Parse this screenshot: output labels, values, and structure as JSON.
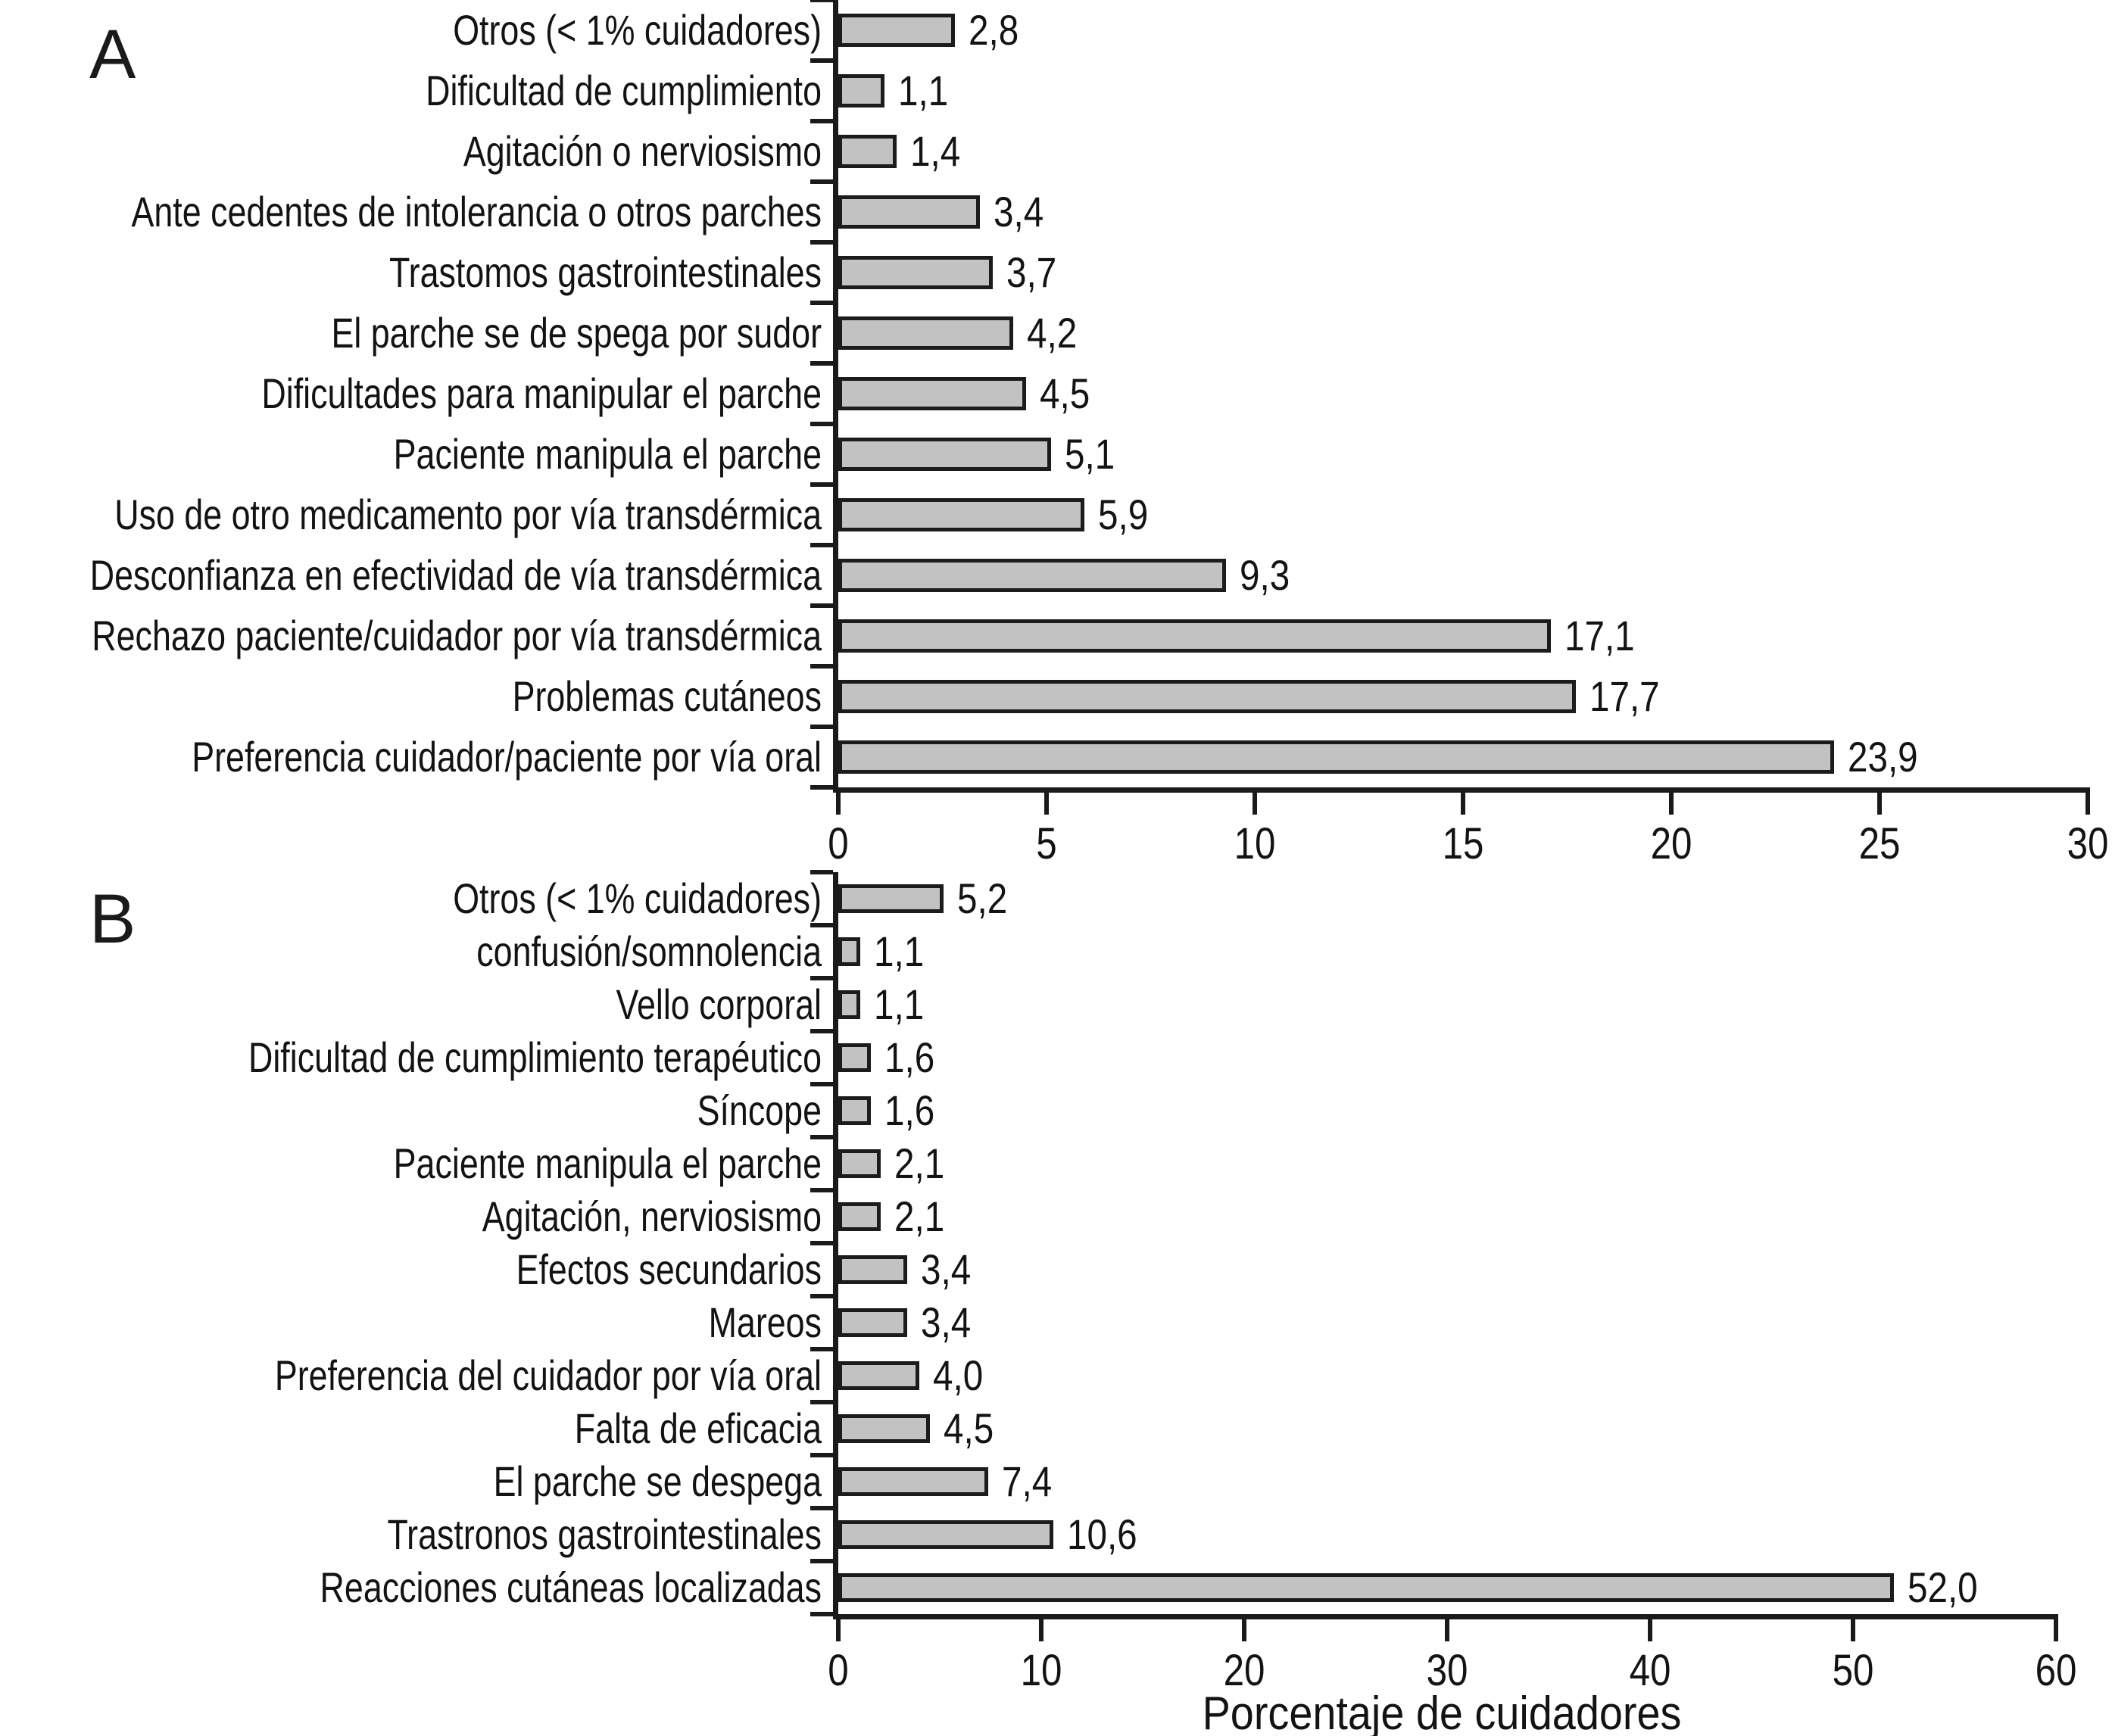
{
  "figure_colors": {
    "bar_fill": "#c2c2c2",
    "bar_border": "#1c1c1c",
    "axis_color": "#1a1a1a",
    "text_color": "#131313",
    "background": "#ffffff"
  },
  "chart_data": [
    {
      "type": "bar",
      "orientation": "horizontal",
      "panel_label": "A",
      "title": "",
      "categories": [
        "Otros (< 1% cuidadores)",
        "Dificultad de cumplimiento",
        "Agitación o nerviosismo",
        "Ante cedentes de intolerancia o otros parches",
        "Trastomos gastrointestinales",
        "El parche se de spega por sudor",
        "Dificultades para manipular el parche",
        "Paciente manipula el parche",
        "Uso de otro medicamento por vía transdérmica",
        "Desconfianza en efectividad de vía transdérmica",
        "Rechazo paciente/cuidador por vía transdérmica",
        "Problemas cutáneos",
        "Preferencia cuidador/paciente por vía oral"
      ],
      "values": [
        2.8,
        1.1,
        1.4,
        3.4,
        3.7,
        4.2,
        4.5,
        5.1,
        5.9,
        9.3,
        17.1,
        17.7,
        23.9
      ],
      "value_labels": [
        "2,8",
        "1,1",
        "1,4",
        "3,4",
        "3,7",
        "4,2",
        "4,5",
        "5,1",
        "5,9",
        "9,3",
        "17,1",
        "17,7",
        "23,9"
      ],
      "xlim": [
        0,
        30
      ],
      "xticks": [
        0,
        5,
        10,
        15,
        20,
        25,
        30
      ],
      "xlabel": "",
      "ylabel": "",
      "grid": false,
      "legend": false
    },
    {
      "type": "bar",
      "orientation": "horizontal",
      "panel_label": "B",
      "title": "",
      "categories": [
        "Otros (< 1% cuidadores)",
        "confusión/somnolencia",
        "Vello corporal",
        "Dificultad de cumplimiento terapéutico",
        "Síncope",
        "Paciente manipula el parche",
        "Agitación, nerviosismo",
        "Efectos secundarios",
        "Mareos",
        "Preferencia del cuidador por vía oral",
        "Falta de eficacia",
        "El parche se despega",
        "Trastronos gastrointestinales",
        "Reacciones cutáneas localizadas"
      ],
      "values": [
        5.2,
        1.1,
        1.1,
        1.6,
        1.6,
        2.1,
        2.1,
        3.4,
        3.4,
        4.0,
        4.5,
        7.4,
        10.6,
        52.0
      ],
      "value_labels": [
        "5,2",
        "1,1",
        "1,1",
        "1,6",
        "1,6",
        "2,1",
        "2,1",
        "3,4",
        "3,4",
        "4,0",
        "4,5",
        "7,4",
        "10,6",
        "52,0"
      ],
      "xlim": [
        0,
        60
      ],
      "xticks": [
        0,
        10,
        20,
        30,
        40,
        50,
        60
      ],
      "xlabel": "Porcentaje de cuidadores",
      "ylabel": "",
      "grid": false,
      "legend": false
    }
  ]
}
